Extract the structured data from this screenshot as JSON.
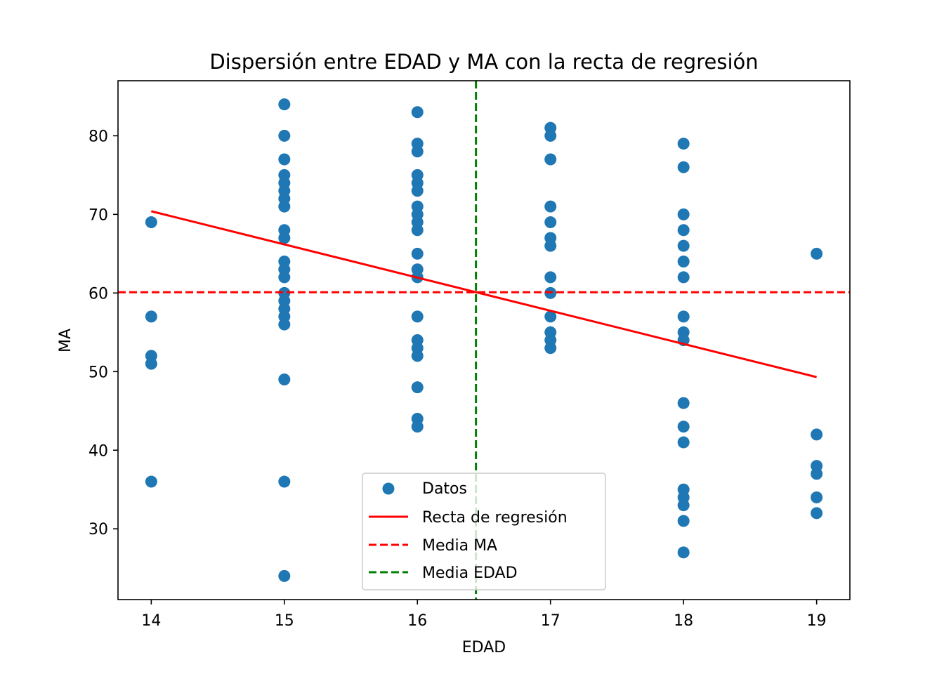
{
  "chart_data": {
    "type": "scatter",
    "title": "Dispersión entre EDAD y MA con la recta de regresión",
    "xlabel": "EDAD",
    "ylabel": "MA",
    "xlim": [
      13.75,
      19.25
    ],
    "ylim": [
      21,
      87
    ],
    "xticks": [
      14,
      15,
      16,
      17,
      18,
      19
    ],
    "yticks": [
      30,
      40,
      50,
      60,
      70,
      80
    ],
    "grid": false,
    "legend_position": "bottom-center",
    "series": [
      {
        "name": "Datos",
        "kind": "scatter",
        "color": "#1f77b4",
        "points": [
          [
            14,
            69
          ],
          [
            14,
            57
          ],
          [
            14,
            52
          ],
          [
            14,
            51
          ],
          [
            14,
            36
          ],
          [
            15,
            84
          ],
          [
            15,
            80
          ],
          [
            15,
            77
          ],
          [
            15,
            75
          ],
          [
            15,
            74
          ],
          [
            15,
            73
          ],
          [
            15,
            72
          ],
          [
            15,
            71
          ],
          [
            15,
            68
          ],
          [
            15,
            67
          ],
          [
            15,
            64
          ],
          [
            15,
            63
          ],
          [
            15,
            62
          ],
          [
            15,
            60
          ],
          [
            15,
            59
          ],
          [
            15,
            58
          ],
          [
            15,
            57
          ],
          [
            15,
            56
          ],
          [
            15,
            49
          ],
          [
            15,
            36
          ],
          [
            15,
            24
          ],
          [
            16,
            83
          ],
          [
            16,
            79
          ],
          [
            16,
            78
          ],
          [
            16,
            75
          ],
          [
            16,
            74
          ],
          [
            16,
            73
          ],
          [
            16,
            71
          ],
          [
            16,
            70
          ],
          [
            16,
            69
          ],
          [
            16,
            68
          ],
          [
            16,
            65
          ],
          [
            16,
            63
          ],
          [
            16,
            62
          ],
          [
            16,
            57
          ],
          [
            16,
            54
          ],
          [
            16,
            53
          ],
          [
            16,
            52
          ],
          [
            16,
            48
          ],
          [
            16,
            44
          ],
          [
            16,
            43
          ],
          [
            17,
            81
          ],
          [
            17,
            80
          ],
          [
            17,
            77
          ],
          [
            17,
            71
          ],
          [
            17,
            69
          ],
          [
            17,
            67
          ],
          [
            17,
            66
          ],
          [
            17,
            62
          ],
          [
            17,
            60
          ],
          [
            17,
            57
          ],
          [
            17,
            55
          ],
          [
            17,
            54
          ],
          [
            17,
            53
          ],
          [
            18,
            79
          ],
          [
            18,
            76
          ],
          [
            18,
            70
          ],
          [
            18,
            68
          ],
          [
            18,
            66
          ],
          [
            18,
            64
          ],
          [
            18,
            62
          ],
          [
            18,
            57
          ],
          [
            18,
            55
          ],
          [
            18,
            54
          ],
          [
            18,
            46
          ],
          [
            18,
            43
          ],
          [
            18,
            41
          ],
          [
            18,
            35
          ],
          [
            18,
            34
          ],
          [
            18,
            33
          ],
          [
            18,
            31
          ],
          [
            18,
            27
          ],
          [
            19,
            65
          ],
          [
            19,
            42
          ],
          [
            19,
            38
          ],
          [
            19,
            37
          ],
          [
            19,
            34
          ],
          [
            19,
            32
          ]
        ]
      },
      {
        "name": "Recta de regresión",
        "kind": "line",
        "color": "#ff0000",
        "x": [
          14,
          19
        ],
        "y": [
          70.4,
          49.3
        ]
      },
      {
        "name": "Media MA",
        "kind": "hline",
        "color": "#ff0000",
        "dash": true,
        "y": 60.1
      },
      {
        "name": "Media EDAD",
        "kind": "vline",
        "color": "#008000",
        "dash": true,
        "x": 16.44
      }
    ]
  }
}
